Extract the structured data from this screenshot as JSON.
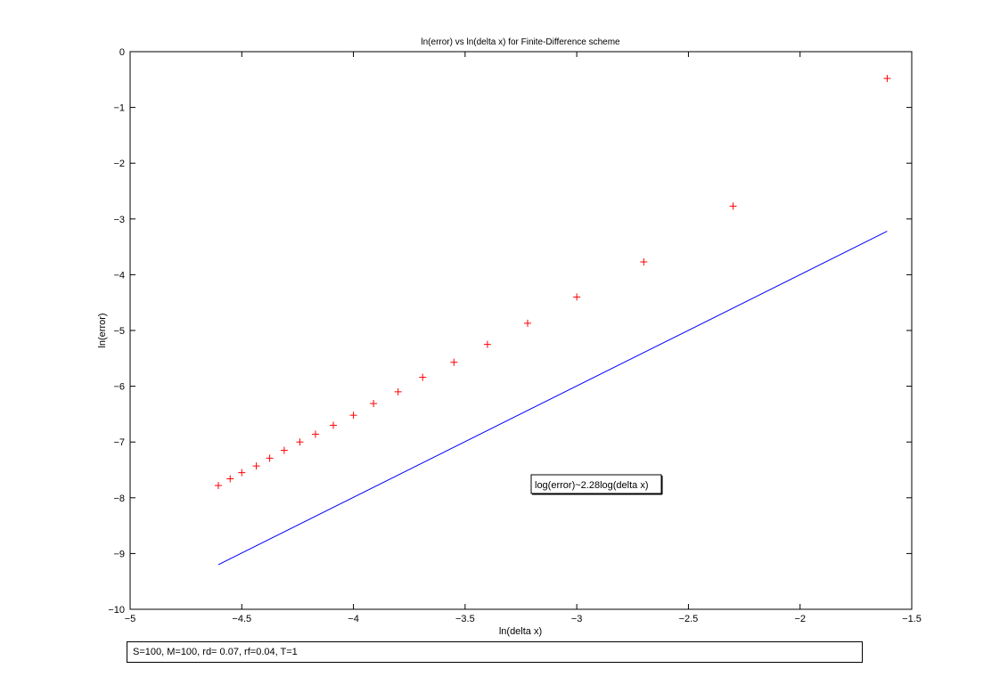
{
  "chart_data": {
    "type": "scatter",
    "title": "ln(error) vs ln(delta x) for Finite-Difference scheme",
    "xlabel": "ln(delta x)",
    "ylabel": "ln(error)",
    "xlim": [
      -5,
      -1.5
    ],
    "ylim": [
      -10,
      0
    ],
    "xticks": [
      -5,
      -4.5,
      -4,
      -3.5,
      -3,
      -2.5,
      -2,
      -1.5
    ],
    "yticks": [
      0,
      -1,
      -2,
      -3,
      -4,
      -5,
      -6,
      -7,
      -8,
      -9,
      -10
    ],
    "xtick_labels": [
      "−5",
      "−4.5",
      "−4",
      "−3.5",
      "−3",
      "−2.5",
      "−2",
      "−1.5"
    ],
    "ytick_labels": [
      "0",
      "−1",
      "−2",
      "−3",
      "−4",
      "−5",
      "−6",
      "−7",
      "−8",
      "−9",
      "−10"
    ],
    "grid": false,
    "series": [
      {
        "marker": "plus",
        "color": "#ff0000",
        "x": [
          -4.605,
          -4.552,
          -4.5,
          -4.435,
          -4.375,
          -4.31,
          -4.24,
          -4.17,
          -4.09,
          -4.0,
          -3.91,
          -3.8,
          -3.69,
          -3.55,
          -3.4,
          -3.22,
          -3.0,
          -2.7,
          -2.3,
          -1.61
        ],
        "y": [
          -7.78,
          -7.66,
          -7.55,
          -7.43,
          -7.29,
          -7.15,
          -7.0,
          -6.86,
          -6.7,
          -6.52,
          -6.31,
          -6.1,
          -5.84,
          -5.57,
          -5.25,
          -4.87,
          -4.4,
          -3.77,
          -2.77,
          -0.48
        ]
      },
      {
        "marker": "line",
        "color": "#0000ff",
        "x": [
          -4.605,
          -1.61
        ],
        "y": [
          -9.2,
          -3.22
        ]
      }
    ],
    "annotation": {
      "text": "log(error)~2.28log(delta x)",
      "x": -2.82,
      "y": -7.8
    }
  },
  "footer": {
    "text": "S=100, M=100, rd= 0.07, rf=0.04, T=1"
  }
}
